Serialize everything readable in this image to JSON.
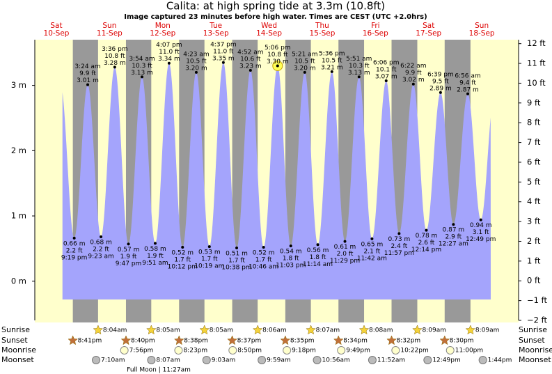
{
  "header": {
    "title": "Calita: at high  spring tide at 3.3m (10.8ft)",
    "subtitle": "Image captured 23 minutes before high water. Times are CEST (UTC +2.0hrs)"
  },
  "chart_data": {
    "type": "tide",
    "ylim": [
      -0.6,
      3.7
    ],
    "yticks": [
      {
        "value": 0,
        "label": "0 m"
      },
      {
        "value": 1,
        "label": "1 m"
      },
      {
        "value": 2,
        "label": "2 m"
      },
      {
        "value": 3,
        "label": "3 m"
      }
    ],
    "y2lim": [
      -2,
      12.2
    ],
    "y2ticks": [
      {
        "value": -2,
        "label": "−2 ft"
      },
      {
        "value": -1,
        "label": "−1 ft"
      },
      {
        "value": 0,
        "label": "0 ft"
      },
      {
        "value": 1,
        "label": "1 ft"
      },
      {
        "value": 2,
        "label": "2 ft"
      },
      {
        "value": 3,
        "label": "3 ft"
      },
      {
        "value": 4,
        "label": "4 ft"
      },
      {
        "value": 5,
        "label": "5 ft"
      },
      {
        "value": 6,
        "label": "6 ft"
      },
      {
        "value": 7,
        "label": "7 ft"
      },
      {
        "value": 8,
        "label": "8 ft"
      },
      {
        "value": 9,
        "label": "9 ft"
      },
      {
        "value": 10,
        "label": "10 ft"
      },
      {
        "value": 11,
        "label": "11 ft"
      },
      {
        "value": 12,
        "label": "12 ft"
      }
    ],
    "color": "#a4a4fc",
    "row_labels": [
      "Sunrise",
      "Sunset",
      "Moonrise",
      "Moonset"
    ],
    "days": [
      {
        "name": "Sat",
        "date": "10-Sep",
        "sunrise": null,
        "sunset": "8:41pm",
        "moonrise": null,
        "moonset": null,
        "tides": [
          {
            "time": "9:19 pm",
            "height": 0.66,
            "height_label": "0.66 m",
            "feet_label": "2.2 ft"
          }
        ]
      },
      {
        "name": "Sun",
        "date": "11-Sep",
        "sunrise": "8:04am",
        "sunset": "8:40pm",
        "moonrise": "7:56pm",
        "moonset": "7:10am",
        "tides": [
          {
            "time": "3:24 am",
            "height": 3.01,
            "height_label": "3.01 m",
            "feet_label": "9.9 ft"
          },
          {
            "time": "9:23 am",
            "height": 0.68,
            "height_label": "0.68 m",
            "feet_label": "2.2 ft"
          },
          {
            "time": "3:36 pm",
            "height": 3.28,
            "height_label": "3.28 m",
            "feet_label": "10.8 ft"
          },
          {
            "time": "9:47 pm",
            "height": 0.57,
            "height_label": "0.57 m",
            "feet_label": "1.9 ft"
          }
        ]
      },
      {
        "name": "Mon",
        "date": "12-Sep",
        "sunrise": "8:05am",
        "sunset": "8:38pm",
        "moonrise": "8:23pm",
        "moonset": "8:07am",
        "moon_phase": "Full Moon | 11:27am",
        "tides": [
          {
            "time": "3:54 am",
            "height": 3.13,
            "height_label": "3.13 m",
            "feet_label": "10.3 ft"
          },
          {
            "time": "9:51 am",
            "height": 0.58,
            "height_label": "0.58 m",
            "feet_label": "1.9 ft"
          },
          {
            "time": "4:07 pm",
            "height": 3.34,
            "height_label": "3.34 m",
            "feet_label": "11.0 ft"
          },
          {
            "time": "10:12 pm",
            "height": 0.52,
            "height_label": "0.52 m",
            "feet_label": "1.7 ft"
          }
        ]
      },
      {
        "name": "Tue",
        "date": "13-Sep",
        "sunrise": "8:05am",
        "sunset": "8:37pm",
        "moonrise": "8:50pm",
        "moonset": "9:03am",
        "tides": [
          {
            "time": "4:23 am",
            "height": 3.2,
            "height_label": "3.20 m",
            "feet_label": "10.5 ft"
          },
          {
            "time": "10:19 am",
            "height": 0.53,
            "height_label": "0.53 m",
            "feet_label": "1.7 ft"
          },
          {
            "time": "4:37 pm",
            "height": 3.35,
            "height_label": "3.35 m",
            "feet_label": "11.0 ft"
          },
          {
            "time": "10:38 pm",
            "height": 0.51,
            "height_label": "0.51 m",
            "feet_label": "1.7 ft"
          }
        ]
      },
      {
        "name": "Wed",
        "date": "14-Sep",
        "sunrise": "8:06am",
        "sunset": "8:35pm",
        "moonrise": "9:18pm",
        "moonset": "9:59am",
        "tides": [
          {
            "time": "4:52 am",
            "height": 3.23,
            "height_label": "3.23 m",
            "feet_label": "10.6 ft"
          },
          {
            "time": "10:46 am",
            "height": 0.52,
            "height_label": "0.52 m",
            "feet_label": "1.7 ft"
          },
          {
            "time": "5:06 pm",
            "height": 3.3,
            "height_label": "3.30 m",
            "feet_label": "10.8 ft",
            "highlighted": true
          },
          {
            "time": "11:03 pm",
            "height": 0.54,
            "height_label": "0.54 m",
            "feet_label": "1.8 ft"
          }
        ]
      },
      {
        "name": "Thu",
        "date": "15-Sep",
        "sunrise": "8:07am",
        "sunset": "8:34pm",
        "moonrise": "9:49pm",
        "moonset": "10:56am",
        "tides": [
          {
            "time": "5:21 am",
            "height": 3.2,
            "height_label": "3.20 m",
            "feet_label": "10.5 ft"
          },
          {
            "time": "11:14 am",
            "height": 0.56,
            "height_label": "0.56 m",
            "feet_label": "1.8 ft"
          },
          {
            "time": "5:36 pm",
            "height": 3.21,
            "height_label": "3.21 m",
            "feet_label": "10.5 ft"
          },
          {
            "time": "11:29 pm",
            "height": 0.61,
            "height_label": "0.61 m",
            "feet_label": "2.0 ft"
          }
        ]
      },
      {
        "name": "Fri",
        "date": "16-Sep",
        "sunrise": "8:08am",
        "sunset": "8:32pm",
        "moonrise": "10:22pm",
        "moonset": "11:52am",
        "tides": [
          {
            "time": "5:51 am",
            "height": 3.13,
            "height_label": "3.13 m",
            "feet_label": "10.3 ft"
          },
          {
            "time": "11:42 am",
            "height": 0.65,
            "height_label": "0.65 m",
            "feet_label": "2.1 ft"
          },
          {
            "time": "6:06 pm",
            "height": 3.07,
            "height_label": "3.07 m",
            "feet_label": "10.1 ft"
          },
          {
            "time": "11:57 pm",
            "height": 0.73,
            "height_label": "0.73 m",
            "feet_label": "2.4 ft"
          }
        ]
      },
      {
        "name": "Sat",
        "date": "17-Sep",
        "sunrise": "8:09am",
        "sunset": "8:30pm",
        "moonrise": "11:00pm",
        "moonset": "12:49pm",
        "tides": [
          {
            "time": "6:22 am",
            "height": 3.02,
            "height_label": "3.02 m",
            "feet_label": "9.9 ft"
          },
          {
            "time": "12:14 pm",
            "height": 0.78,
            "height_label": "0.78 m",
            "feet_label": "2.6 ft"
          },
          {
            "time": "6:39 pm",
            "height": 2.89,
            "height_label": "2.89 m",
            "feet_label": "9.5 ft"
          }
        ]
      },
      {
        "name": "Sun",
        "date": "18-Sep",
        "sunrise": "8:09am",
        "sunset": null,
        "moonrise": null,
        "moonset": "1:44pm",
        "tides": [
          {
            "time": "12:27 am",
            "height": 0.87,
            "height_label": "0.87 m",
            "feet_label": "2.9 ft"
          },
          {
            "time": "6:56 am",
            "height": 2.87,
            "height_label": "2.87 m",
            "feet_label": "9.4 ft"
          },
          {
            "time": "12:49 pm",
            "height": 0.94,
            "height_label": "0.94 m",
            "feet_label": "3.1 ft"
          }
        ]
      }
    ]
  }
}
